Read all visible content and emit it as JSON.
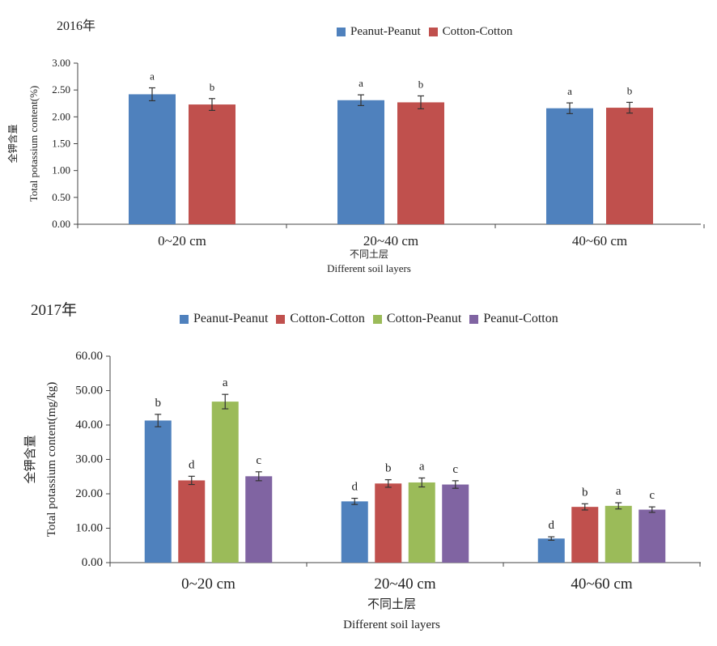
{
  "chart_data": [
    {
      "type": "bar",
      "title": "2016年",
      "ylabel_cn": "全钾含量",
      "ylabel_en": "Total potassium content",
      "ylabel_unit": "(%)",
      "xlabel_cn": "不同土层",
      "xlabel_en": "Different soil layers",
      "categories": [
        "0~20 cm",
        "20~40 cm",
        "40~60 cm"
      ],
      "ylim": [
        0,
        3
      ],
      "yticks": [
        "0.00",
        "0.50",
        "1.00",
        "1.50",
        "2.00",
        "2.50",
        "3.00"
      ],
      "legend_position": "top-center",
      "grid": false,
      "series": [
        {
          "name": "Peanut-Peanut",
          "color": "#4f81bd",
          "values": [
            2.42,
            2.31,
            2.16
          ],
          "errors": [
            0.12,
            0.1,
            0.1
          ],
          "letters": [
            "a",
            "a",
            "a"
          ]
        },
        {
          "name": "Cotton-Cotton",
          "color": "#c0504d",
          "values": [
            2.23,
            2.27,
            2.17
          ],
          "errors": [
            0.11,
            0.12,
            0.1
          ],
          "letters": [
            "b",
            "b",
            "b"
          ]
        }
      ]
    },
    {
      "type": "bar",
      "title": "2017年",
      "ylabel_cn": "全钾含量",
      "ylabel_en": "Total potassium content",
      "ylabel_unit": "(mg/kg)",
      "xlabel_cn": "不同土层",
      "xlabel_en": "Different soil layers",
      "categories": [
        "0~20 cm",
        "20~40 cm",
        "40~60 cm"
      ],
      "ylim": [
        0,
        60
      ],
      "yticks": [
        "0.00",
        "10.00",
        "20.00",
        "30.00",
        "40.00",
        "50.00",
        "60.00"
      ],
      "legend_position": "top-center",
      "grid": false,
      "series": [
        {
          "name": "Peanut-Peanut",
          "color": "#4f81bd",
          "values": [
            41.3,
            17.8,
            7.0
          ],
          "errors": [
            1.8,
            0.9,
            0.5
          ],
          "letters": [
            "b",
            "d",
            "d"
          ]
        },
        {
          "name": "Cotton-Cotton",
          "color": "#c0504d",
          "values": [
            23.9,
            23.0,
            16.2
          ],
          "errors": [
            1.2,
            1.1,
            0.9
          ],
          "letters": [
            "d",
            "b",
            "b"
          ]
        },
        {
          "name": "Cotton-Peanut",
          "color": "#9bbb59",
          "values": [
            46.8,
            23.3,
            16.5
          ],
          "errors": [
            2.1,
            1.3,
            0.9
          ],
          "letters": [
            "a",
            "a",
            "a"
          ]
        },
        {
          "name": "Peanut-Cotton",
          "color": "#8064a2",
          "values": [
            25.1,
            22.7,
            15.4
          ],
          "errors": [
            1.3,
            1.1,
            0.8
          ],
          "letters": [
            "c",
            "c",
            "c"
          ]
        }
      ]
    }
  ]
}
